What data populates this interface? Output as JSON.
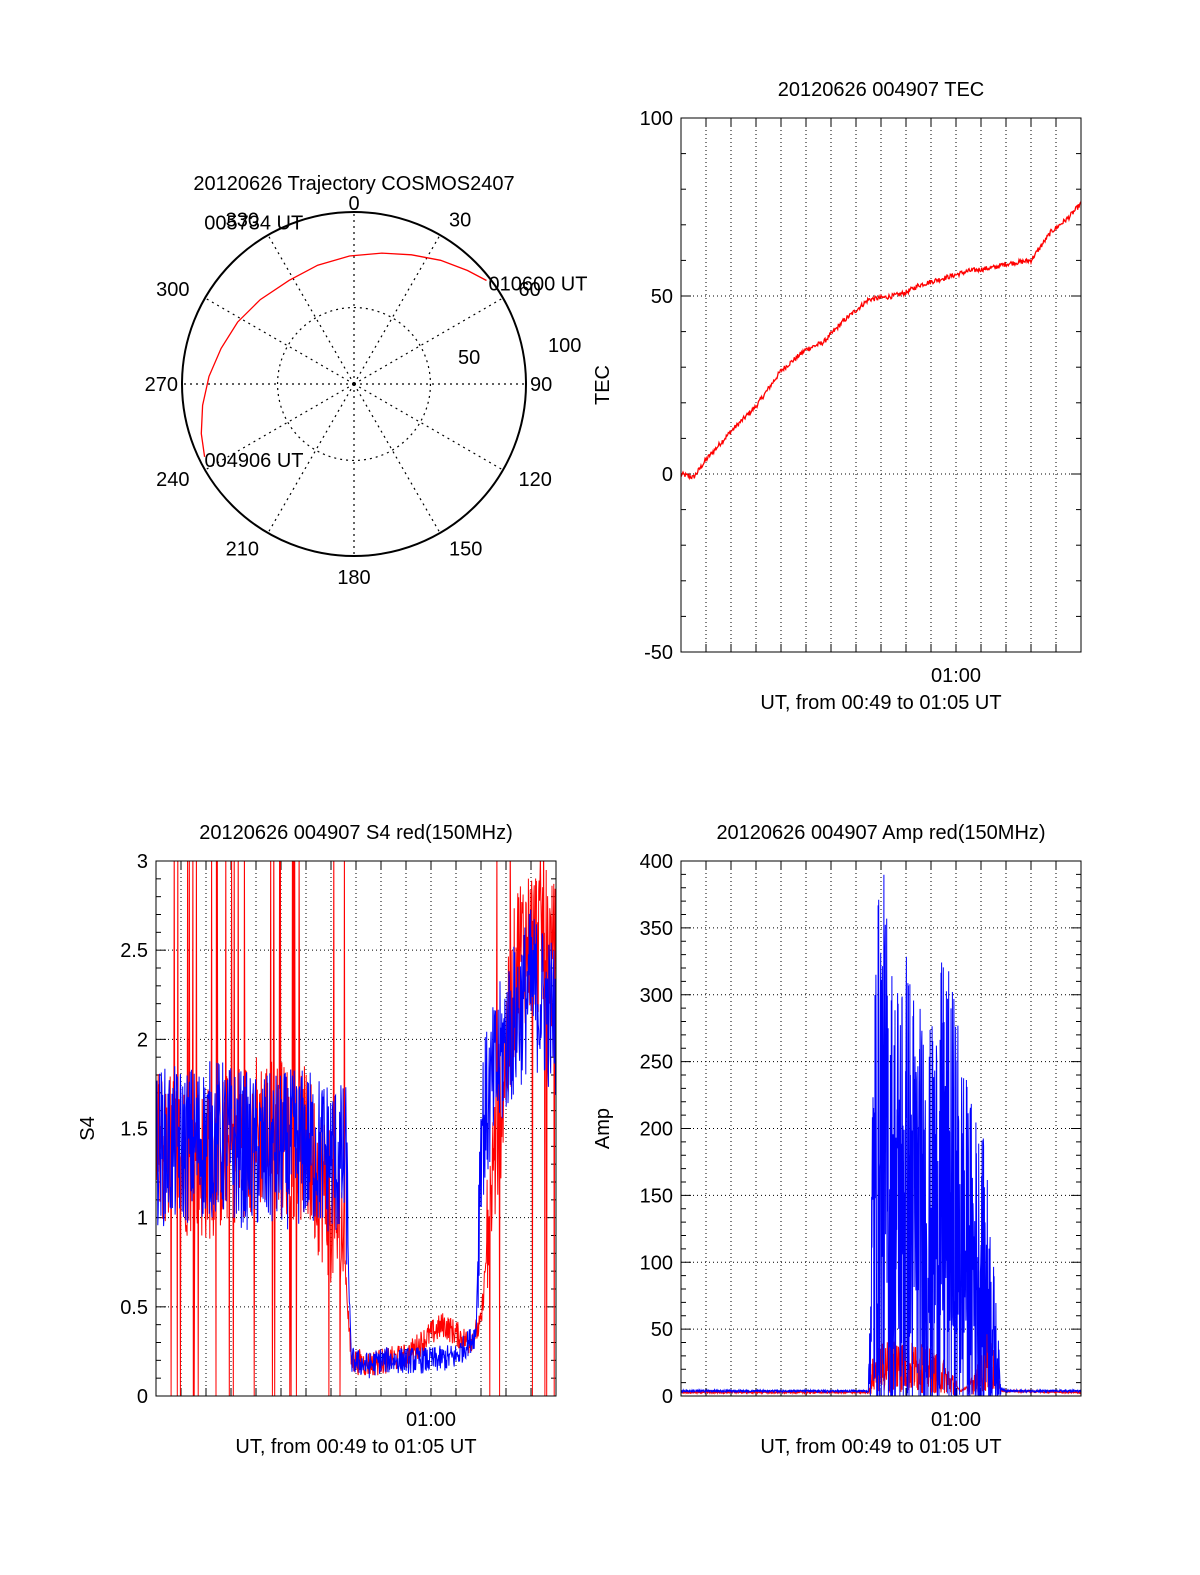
{
  "chart_data": [
    {
      "type": "polar",
      "title": "20120626 Trajectory COSMOS2407",
      "angle_labels": [
        "0",
        "30",
        "60",
        "90",
        "120",
        "150",
        "180",
        "210",
        "240",
        "270",
        "300",
        "330"
      ],
      "radial_labels": [
        "50",
        "100"
      ],
      "colors": {
        "trajectory": "#ff0000"
      },
      "trajectory": {
        "azimuth_deg": [
          244,
          252,
          262,
          273,
          285,
          298,
          312,
          328,
          343,
          358,
          12,
          24,
          35,
          45,
          52
        ],
        "elevation_deg": [
          3,
          6,
          10,
          14,
          18,
          21,
          24,
          26,
          25,
          23,
          20,
          16,
          11,
          6,
          2
        ],
        "labels": [
          {
            "text": "004906 UT",
            "point": 0
          },
          {
            "text": "005734 UT",
            "point": 6
          },
          {
            "text": "010600 UT",
            "point": 14
          }
        ]
      }
    },
    {
      "type": "line",
      "title": "20120626 004907 TEC",
      "xlabel": "UT, from 00:49 to 01:05 UT",
      "ylabel": "TEC",
      "xlim_minutes": [
        49,
        65
      ],
      "xticks": [
        {
          "label": "01:00",
          "minute": 60
        }
      ],
      "ylim": [
        -50,
        100
      ],
      "yticks": [
        "-50",
        "0",
        "50",
        "100"
      ],
      "grid": true,
      "series": [
        {
          "color": "#ff0000",
          "x_minutes": [
            49.0,
            49.5,
            50.0,
            51.0,
            52.0,
            53.0,
            54.0,
            54.7,
            55.5,
            56.5,
            57.5,
            58.0,
            58.5,
            59.5,
            60.5,
            61.5,
            62.0,
            63.0,
            63.8,
            64.5,
            65.0
          ],
          "values": [
            0,
            -1,
            4,
            12,
            19,
            29,
            35,
            37,
            43,
            49,
            50,
            51,
            53,
            55,
            57,
            58,
            59,
            60,
            68,
            72,
            76
          ]
        }
      ]
    },
    {
      "type": "line",
      "title": "20120626 004907 S4 red(150MHz)",
      "xlabel": "UT, from 00:49 to 01:05 UT",
      "ylabel": "S4",
      "xlim_minutes": [
        49,
        65
      ],
      "xticks": [
        {
          "label": "01:00",
          "minute": 60
        }
      ],
      "ylim": [
        0,
        3
      ],
      "yticks": [
        "0",
        "0.5",
        "1",
        "1.5",
        "2",
        "2.5",
        "3"
      ],
      "grid": true,
      "series": [
        {
          "color": "#ff0000",
          "x_minutes": [
            49.0,
            51.0,
            53.0,
            55.0,
            56.5,
            56.8,
            57.5,
            59.0,
            60.0,
            60.5,
            61.5,
            62.0,
            62.5,
            63.5,
            64.5,
            65.0
          ],
          "values": [
            1.4,
            1.3,
            1.5,
            1.4,
            0.9,
            0.2,
            0.18,
            0.22,
            0.35,
            0.4,
            0.3,
            0.4,
            1.3,
            2.5,
            2.6,
            2.4
          ]
        },
        {
          "color": "#0000ff",
          "x_minutes": [
            49.0,
            50.0,
            51.5,
            53.0,
            55.0,
            56.6,
            56.8,
            57.5,
            58.0,
            59.0,
            60.0,
            61.0,
            61.8,
            62.0,
            63.0,
            64.0,
            65.0
          ],
          "values": [
            1.4,
            1.4,
            1.45,
            1.35,
            1.4,
            1.3,
            0.2,
            0.17,
            0.2,
            0.2,
            0.2,
            0.22,
            0.35,
            1.5,
            2.0,
            2.3,
            2.1
          ]
        }
      ]
    },
    {
      "type": "line",
      "title": "20120626 004907 Amp red(150MHz)",
      "xlabel": "UT, from 00:49 to 01:05 UT",
      "ylabel": "Amp",
      "xlim_minutes": [
        49,
        65
      ],
      "xticks": [
        {
          "label": "01:00",
          "minute": 60
        }
      ],
      "ylim": [
        0,
        400
      ],
      "yticks": [
        "0",
        "50",
        "100",
        "150",
        "200",
        "250",
        "300",
        "350",
        "400"
      ],
      "grid": true,
      "series": [
        {
          "color": "#ff0000",
          "x_minutes": [
            49.0,
            56.5,
            56.7,
            57.5,
            58.0,
            58.8,
            59.5,
            60.2,
            60.8,
            61.3,
            61.8,
            65.0
          ],
          "values": [
            2,
            2,
            18,
            25,
            22,
            20,
            15,
            3,
            10,
            30,
            3,
            2
          ]
        },
        {
          "color": "#0000ff",
          "x_minutes": [
            49.0,
            56.5,
            56.7,
            57.0,
            57.5,
            58.0,
            58.5,
            59.0,
            59.5,
            60.0,
            60.5,
            61.0,
            61.3,
            61.8,
            62.0,
            65.0
          ],
          "values": [
            3,
            3,
            140,
            180,
            140,
            150,
            130,
            120,
            145,
            130,
            100,
            90,
            70,
            5,
            3,
            3
          ]
        }
      ]
    }
  ]
}
